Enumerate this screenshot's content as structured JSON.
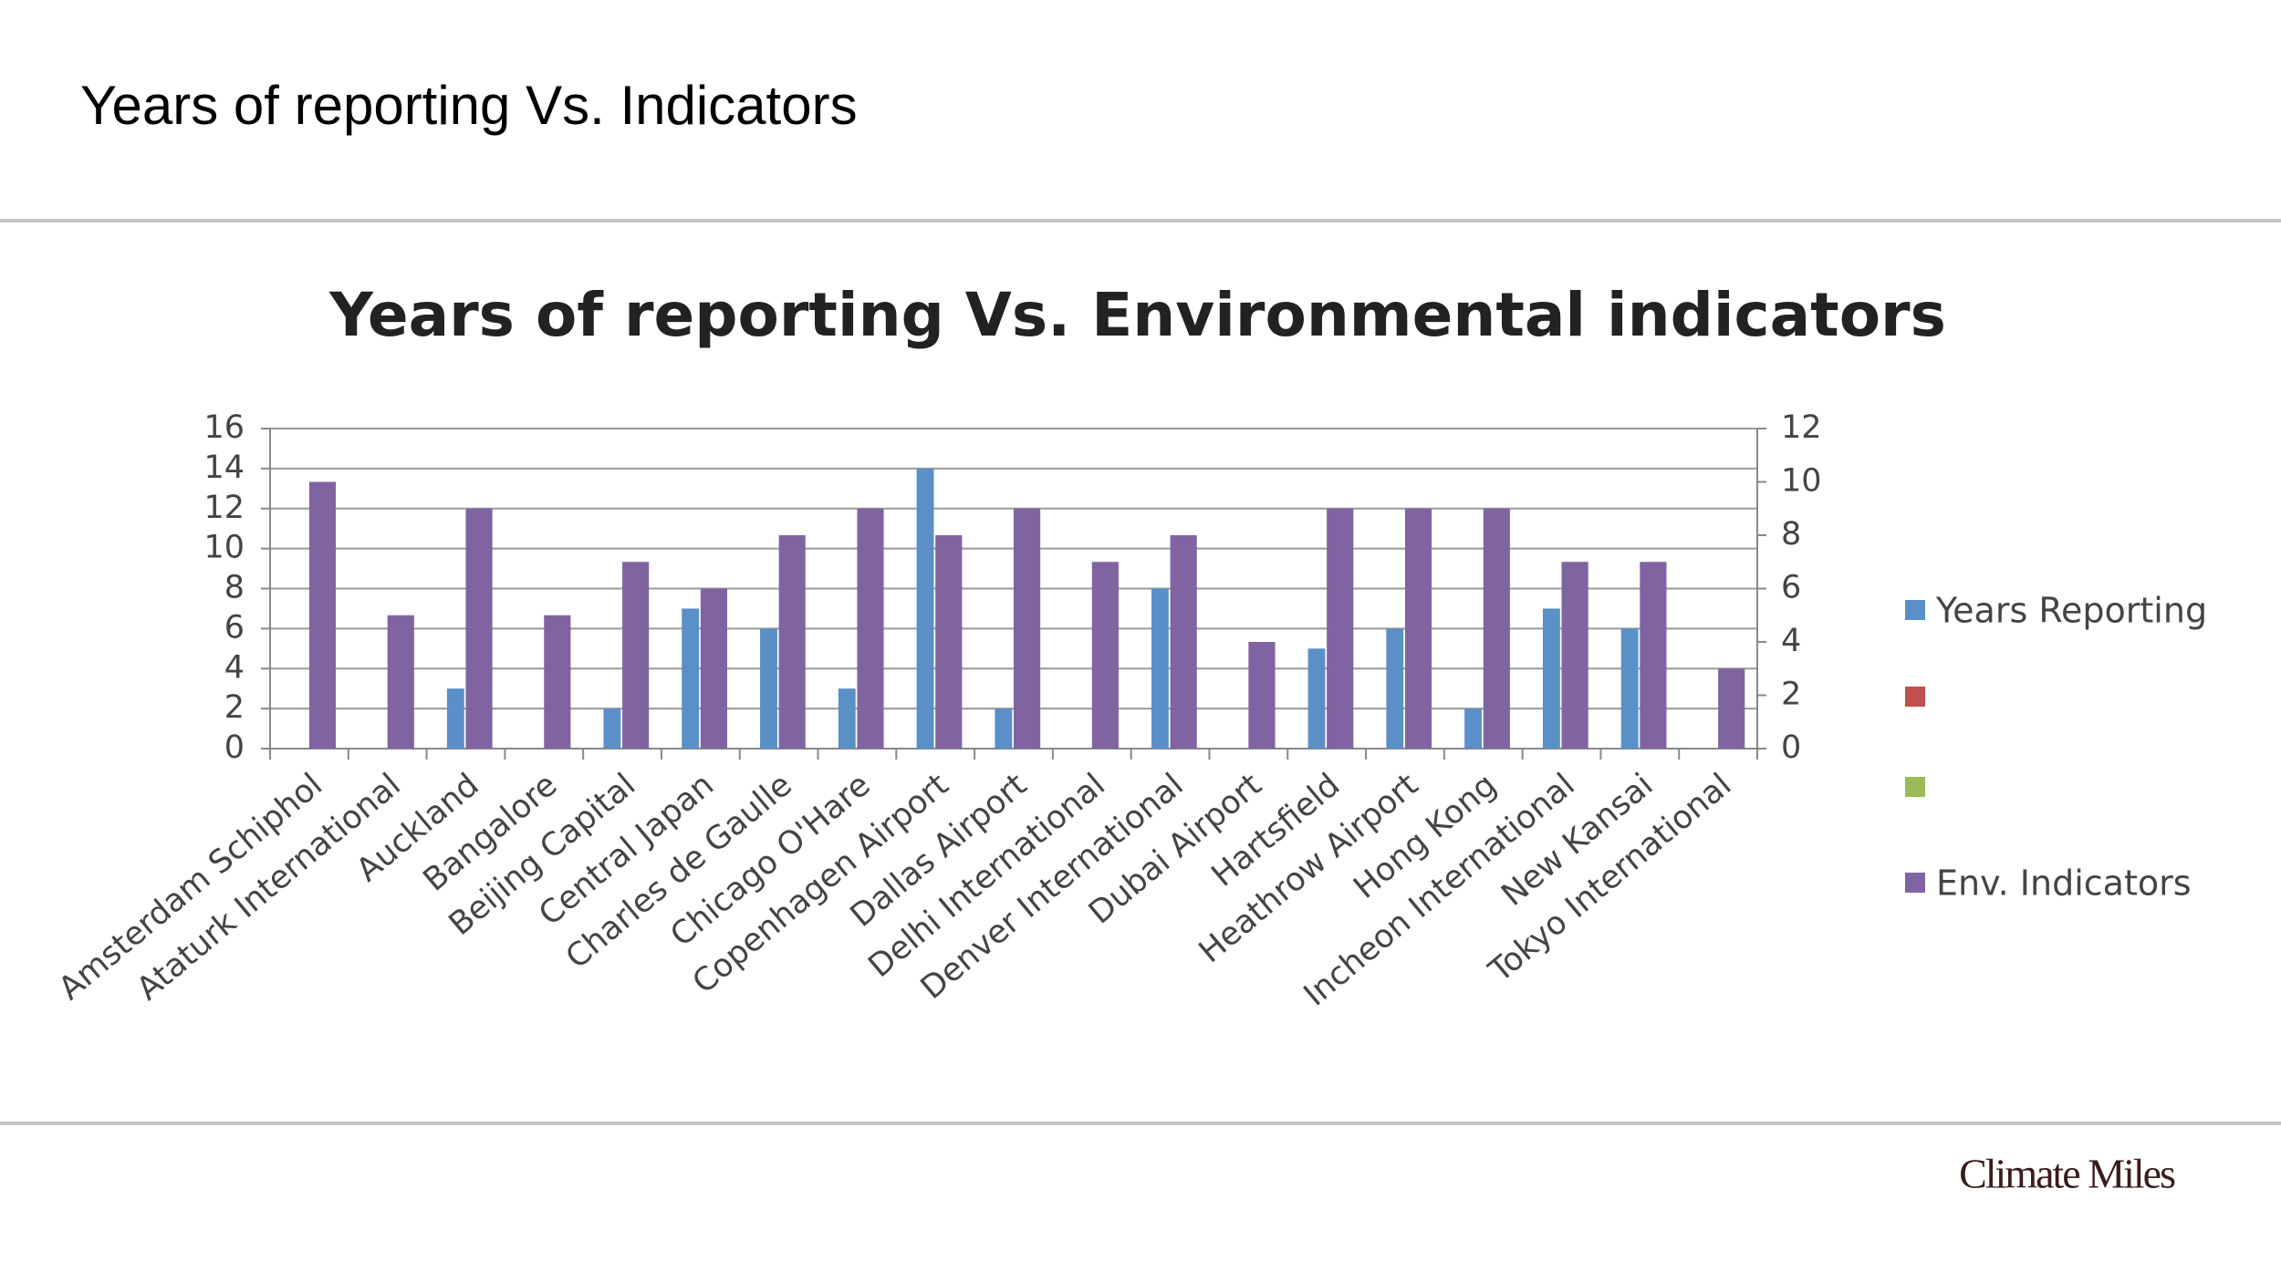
{
  "page_title": "Years of reporting Vs. Indicators",
  "chart_data": {
    "type": "bar",
    "title": "Years of reporting Vs. Environmental indicators",
    "categories": [
      "Amsterdam Schiphol",
      "Ataturk International",
      "Auckland",
      "Bangalore",
      "Beijing Capital",
      "Central Japan",
      "Charles de Gaulle",
      "Chicago O'Hare",
      "Copenhagen Airport",
      "Dallas Airport",
      "Delhi International",
      "Denver International",
      "Dubai Airport",
      "Hartsfield",
      "Heathrow Airport",
      "Hong Kong",
      "Incheon International",
      "New Kansai",
      "Tokyo International"
    ],
    "series": [
      {
        "name": "Years Reporting",
        "color": "#5b8fc7",
        "values": [
          0,
          0,
          3,
          0,
          2,
          7,
          6,
          3,
          14,
          2,
          0,
          8,
          0,
          5,
          6,
          2,
          7,
          6,
          0
        ]
      },
      {
        "name": null,
        "color": "#c0504d",
        "values": [
          null,
          null,
          null,
          null,
          null,
          null,
          null,
          null,
          null,
          null,
          null,
          null,
          null,
          null,
          null,
          null,
          null,
          null,
          null
        ]
      },
      {
        "name": null,
        "color": "#9bbb59",
        "values": [
          null,
          null,
          null,
          null,
          null,
          null,
          null,
          null,
          null,
          null,
          null,
          null,
          null,
          null,
          null,
          null,
          null,
          null,
          null
        ]
      },
      {
        "name": "Env. Indicators",
        "color": "#8064a2",
        "axis": "y2",
        "values": [
          10,
          5,
          9,
          5,
          7,
          6,
          8,
          9,
          8,
          9,
          7,
          8,
          4,
          9,
          9,
          9,
          7,
          7,
          3
        ]
      }
    ],
    "ylim": [
      0,
      16
    ],
    "yticks": [
      0,
      2,
      4,
      6,
      8,
      10,
      12,
      14,
      16
    ],
    "y2lim": [
      0,
      12
    ],
    "y2ticks": [
      0,
      2,
      4,
      6,
      8,
      10,
      12
    ],
    "grid": true,
    "legend": "right"
  },
  "footer": {
    "brand": "Climate Miles"
  }
}
